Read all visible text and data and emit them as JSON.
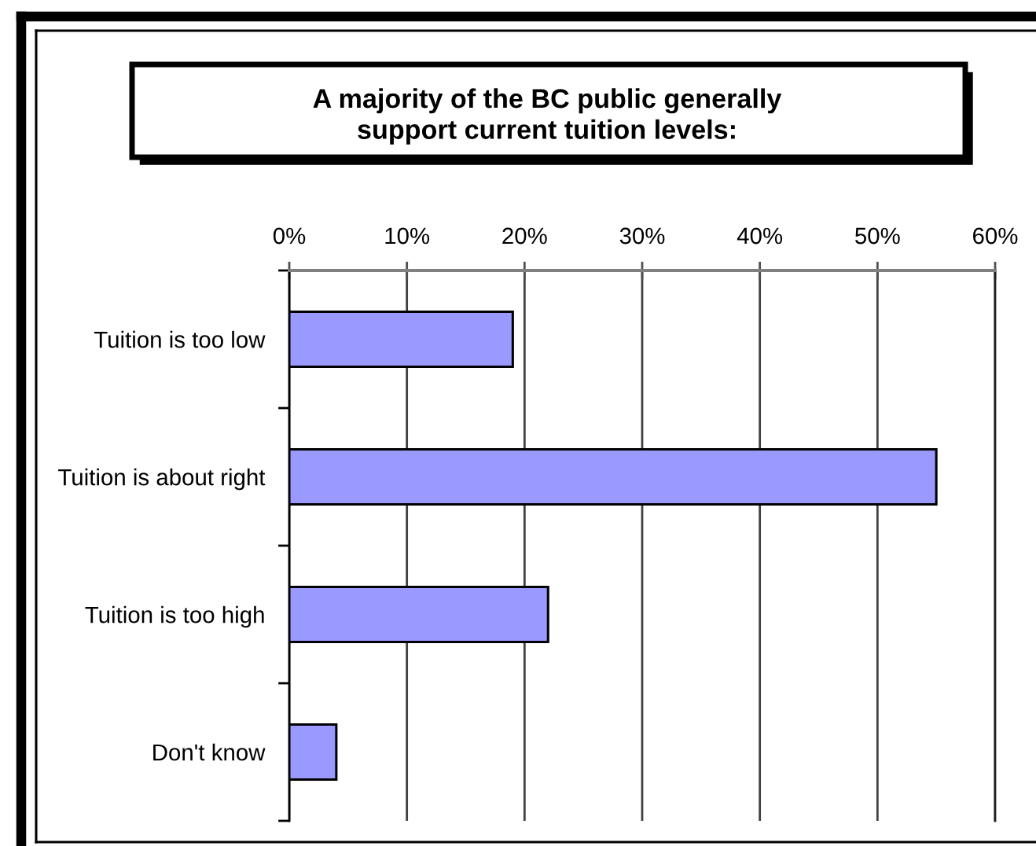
{
  "chart_data": {
    "type": "bar",
    "orientation": "horizontal",
    "title": "A majority of the BC public generally\nsupport current tuition levels:",
    "categories": [
      "Tuition is too low",
      "Tuition is about right",
      "Tuition is too high",
      "Don't know"
    ],
    "values": [
      19,
      55,
      22,
      4
    ],
    "color": "#9999ff",
    "xlim": [
      0,
      60
    ],
    "xticks": [
      {
        "value": 0,
        "label": "0%"
      },
      {
        "value": 10,
        "label": "10%"
      },
      {
        "value": 20,
        "label": "20%"
      },
      {
        "value": 30,
        "label": "30%"
      },
      {
        "value": 40,
        "label": "40%"
      },
      {
        "value": 50,
        "label": "50%"
      },
      {
        "value": 60,
        "label": "60%"
      }
    ],
    "grid": "x"
  }
}
